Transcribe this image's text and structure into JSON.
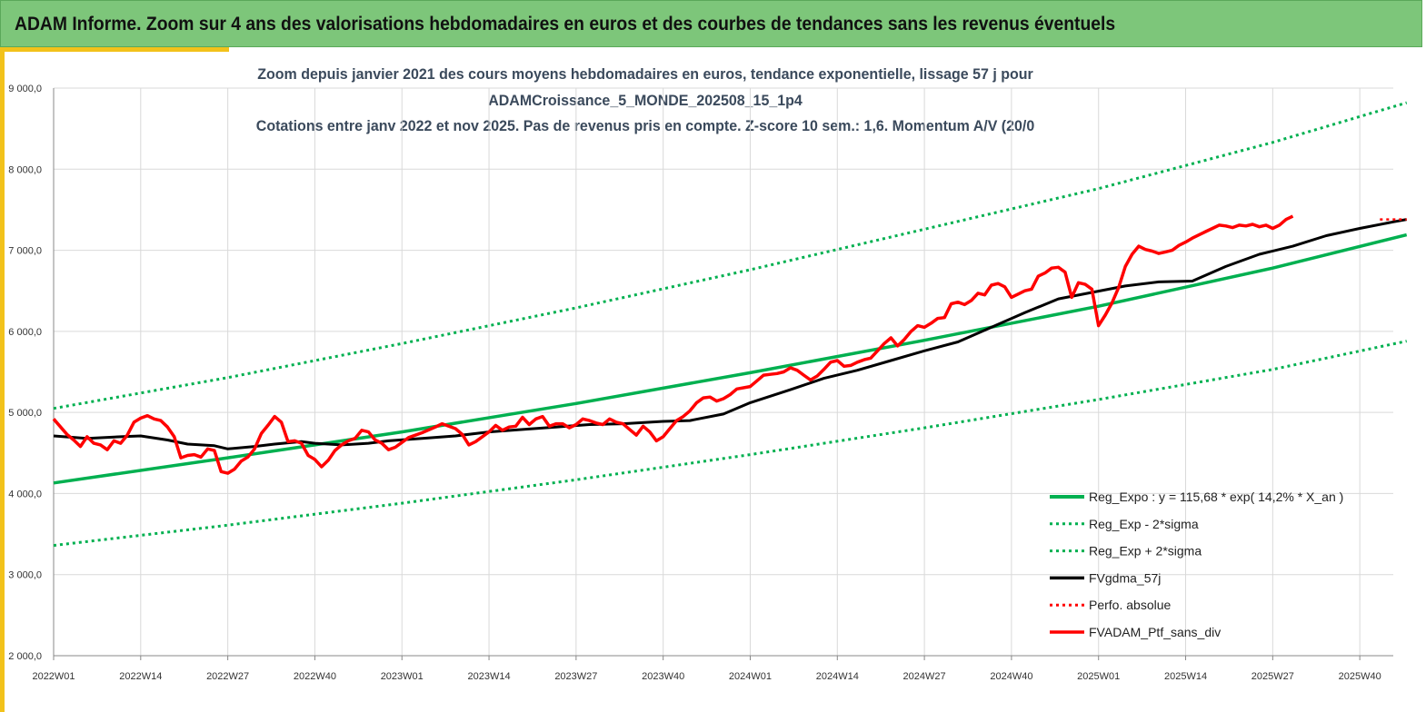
{
  "banner": {
    "title": "ADAM Informe. Zoom sur 4 ans des valorisations hebdomadaires en euros et des courbes de tendances sans les revenus éventuels"
  },
  "colors": {
    "banner": "#7dc67a",
    "accent": "#f2c21b",
    "green": "#00b050",
    "black": "#000000",
    "red": "#ff0000",
    "title": "#3b4a5c"
  },
  "chart_data": {
    "type": "line",
    "title_lines": [
      "Zoom depuis janvier 2021 des cours moyens hebdomadaires  en euros, tendance exponentielle, lissage 57 j pour",
      "ADAMCroissance_5_MONDE_202508_15_1p4",
      "Cotations  entre janv 2022 et nov 2025. Pas de revenus pris en compte. Z-score 10 sem.: 1,6. Momentum A/V (20/0"
    ],
    "x_unit": "weeks since 2022W01",
    "x_range": [
      0,
      200
    ],
    "ylim": [
      2000,
      9000
    ],
    "y_ticks": [
      "2 000,0",
      "3 000,0",
      "4 000,0",
      "5 000,0",
      "6 000,0",
      "7 000,0",
      "8 000,0",
      "9 000,0"
    ],
    "y_tick_values": [
      2000,
      3000,
      4000,
      5000,
      6000,
      7000,
      8000,
      9000
    ],
    "x_ticks": [
      "2022W01",
      "2022W14",
      "2022W27",
      "2022W40",
      "2023W01",
      "2023W14",
      "2023W27",
      "2023W40",
      "2024W01",
      "2024W14",
      "2024W27",
      "2024W40",
      "2025W01",
      "2025W14",
      "2025W27",
      "2025W40"
    ],
    "x_tick_values": [
      0,
      13,
      26,
      39,
      52,
      65,
      78,
      91,
      104,
      117,
      130,
      143,
      156,
      169,
      182,
      195
    ],
    "legend": [
      {
        "label": "Reg_Expo : y = 115,68 * exp( 14,2% *  X_an )",
        "color": "#00b050",
        "style": "solid",
        "width": 4
      },
      {
        "label": "Reg_Exp - 2*sigma",
        "color": "#00b050",
        "style": "dotted",
        "width": 3
      },
      {
        "label": "Reg_Exp + 2*sigma",
        "color": "#00b050",
        "style": "dotted",
        "width": 3
      },
      {
        "label": "FVgdma_57j",
        "color": "#000000",
        "style": "solid",
        "width": 3.5
      },
      {
        "label": "Perfo. absolue",
        "color": "#ff0000",
        "style": "dotted",
        "width": 3
      },
      {
        "label": "FVADAM_Ptf_sans_div",
        "color": "#ff0000",
        "style": "solid",
        "width": 3.5
      }
    ],
    "series": [
      {
        "name": "Reg_Expo",
        "color": "#00b050",
        "style": "solid",
        "width": 3.5,
        "points": [
          [
            0,
            4130
          ],
          [
            26,
            4440
          ],
          [
            52,
            4760
          ],
          [
            78,
            5110
          ],
          [
            104,
            5490
          ],
          [
            130,
            5890
          ],
          [
            156,
            6310
          ],
          [
            182,
            6780
          ],
          [
            202,
            7190
          ]
        ]
      },
      {
        "name": "Reg_Exp - 2*sigma",
        "color": "#00b050",
        "style": "dotted",
        "width": 3,
        "points": [
          [
            0,
            3360
          ],
          [
            26,
            3610
          ],
          [
            52,
            3880
          ],
          [
            78,
            4170
          ],
          [
            104,
            4480
          ],
          [
            130,
            4810
          ],
          [
            156,
            5160
          ],
          [
            182,
            5530
          ],
          [
            202,
            5880
          ]
        ]
      },
      {
        "name": "Reg_Exp + 2*sigma",
        "color": "#00b050",
        "style": "dotted",
        "width": 3,
        "points": [
          [
            0,
            5050
          ],
          [
            26,
            5430
          ],
          [
            52,
            5850
          ],
          [
            78,
            6290
          ],
          [
            104,
            6760
          ],
          [
            130,
            7260
          ],
          [
            156,
            7760
          ],
          [
            182,
            8330
          ],
          [
            202,
            8820
          ]
        ]
      },
      {
        "name": "FVgdma_57j",
        "color": "#000000",
        "style": "solid",
        "width": 3,
        "points": [
          [
            0,
            4710
          ],
          [
            5,
            4680
          ],
          [
            10,
            4700
          ],
          [
            13,
            4710
          ],
          [
            17,
            4660
          ],
          [
            20,
            4610
          ],
          [
            24,
            4590
          ],
          [
            26,
            4550
          ],
          [
            30,
            4580
          ],
          [
            33,
            4610
          ],
          [
            37,
            4640
          ],
          [
            39,
            4620
          ],
          [
            43,
            4600
          ],
          [
            47,
            4620
          ],
          [
            50,
            4650
          ],
          [
            55,
            4680
          ],
          [
            60,
            4710
          ],
          [
            65,
            4760
          ],
          [
            70,
            4790
          ],
          [
            75,
            4820
          ],
          [
            80,
            4850
          ],
          [
            85,
            4860
          ],
          [
            91,
            4890
          ],
          [
            95,
            4900
          ],
          [
            100,
            4980
          ],
          [
            104,
            5120
          ],
          [
            110,
            5280
          ],
          [
            115,
            5420
          ],
          [
            120,
            5520
          ],
          [
            125,
            5640
          ],
          [
            130,
            5760
          ],
          [
            135,
            5870
          ],
          [
            140,
            6050
          ],
          [
            145,
            6230
          ],
          [
            150,
            6400
          ],
          [
            155,
            6480
          ],
          [
            160,
            6560
          ],
          [
            165,
            6610
          ],
          [
            170,
            6620
          ],
          [
            175,
            6800
          ],
          [
            180,
            6950
          ],
          [
            185,
            7050
          ],
          [
            190,
            7180
          ],
          [
            195,
            7270
          ],
          [
            200,
            7350
          ],
          [
            202,
            7380
          ]
        ]
      },
      {
        "name": "Perfo. absolue",
        "color": "#ff0000",
        "style": "dotted",
        "width": 2.5,
        "points": [
          [
            198,
            7380
          ],
          [
            202,
            7380
          ]
        ]
      },
      {
        "name": "FVADAM_Ptf_sans_div",
        "color": "#ff0000",
        "style": "solid",
        "width": 3.5,
        "points": [
          [
            0,
            4920
          ],
          [
            2,
            4730
          ],
          [
            3,
            4660
          ],
          [
            4,
            4580
          ],
          [
            5,
            4700
          ],
          [
            6,
            4620
          ],
          [
            7,
            4600
          ],
          [
            8,
            4540
          ],
          [
            9,
            4650
          ],
          [
            10,
            4620
          ],
          [
            11,
            4720
          ],
          [
            12,
            4880
          ],
          [
            13,
            4930
          ],
          [
            14,
            4960
          ],
          [
            15,
            4920
          ],
          [
            16,
            4900
          ],
          [
            17,
            4820
          ],
          [
            18,
            4700
          ],
          [
            19,
            4440
          ],
          [
            20,
            4470
          ],
          [
            21,
            4480
          ],
          [
            22,
            4450
          ],
          [
            23,
            4550
          ],
          [
            24,
            4530
          ],
          [
            25,
            4270
          ],
          [
            26,
            4250
          ],
          [
            27,
            4300
          ],
          [
            28,
            4400
          ],
          [
            29,
            4450
          ],
          [
            30,
            4550
          ],
          [
            31,
            4740
          ],
          [
            32,
            4840
          ],
          [
            33,
            4950
          ],
          [
            34,
            4880
          ],
          [
            35,
            4640
          ],
          [
            36,
            4650
          ],
          [
            37,
            4620
          ],
          [
            38,
            4470
          ],
          [
            39,
            4420
          ],
          [
            40,
            4330
          ],
          [
            41,
            4410
          ],
          [
            42,
            4530
          ],
          [
            43,
            4600
          ],
          [
            44,
            4650
          ],
          [
            45,
            4680
          ],
          [
            46,
            4780
          ],
          [
            47,
            4760
          ],
          [
            48,
            4660
          ],
          [
            49,
            4620
          ],
          [
            50,
            4540
          ],
          [
            51,
            4570
          ],
          [
            52,
            4630
          ],
          [
            53,
            4690
          ],
          [
            55,
            4750
          ],
          [
            57,
            4820
          ],
          [
            58,
            4860
          ],
          [
            60,
            4800
          ],
          [
            61,
            4730
          ],
          [
            62,
            4600
          ],
          [
            63,
            4640
          ],
          [
            64,
            4700
          ],
          [
            65,
            4760
          ],
          [
            66,
            4840
          ],
          [
            67,
            4780
          ],
          [
            68,
            4820
          ],
          [
            69,
            4830
          ],
          [
            70,
            4940
          ],
          [
            71,
            4850
          ],
          [
            72,
            4920
          ],
          [
            73,
            4950
          ],
          [
            74,
            4830
          ],
          [
            75,
            4860
          ],
          [
            76,
            4860
          ],
          [
            77,
            4810
          ],
          [
            78,
            4850
          ],
          [
            79,
            4920
          ],
          [
            80,
            4900
          ],
          [
            81,
            4870
          ],
          [
            82,
            4850
          ],
          [
            83,
            4920
          ],
          [
            84,
            4880
          ],
          [
            85,
            4860
          ],
          [
            86,
            4790
          ],
          [
            87,
            4720
          ],
          [
            88,
            4830
          ],
          [
            89,
            4760
          ],
          [
            90,
            4650
          ],
          [
            91,
            4700
          ],
          [
            92,
            4800
          ],
          [
            93,
            4900
          ],
          [
            94,
            4950
          ],
          [
            95,
            5020
          ],
          [
            96,
            5120
          ],
          [
            97,
            5180
          ],
          [
            98,
            5190
          ],
          [
            99,
            5140
          ],
          [
            100,
            5170
          ],
          [
            101,
            5220
          ],
          [
            102,
            5290
          ],
          [
            104,
            5320
          ],
          [
            105,
            5390
          ],
          [
            106,
            5460
          ],
          [
            107,
            5470
          ],
          [
            108,
            5480
          ],
          [
            109,
            5500
          ],
          [
            110,
            5550
          ],
          [
            111,
            5520
          ],
          [
            112,
            5460
          ],
          [
            113,
            5400
          ],
          [
            114,
            5450
          ],
          [
            115,
            5530
          ],
          [
            116,
            5620
          ],
          [
            117,
            5640
          ],
          [
            118,
            5570
          ],
          [
            119,
            5580
          ],
          [
            120,
            5620
          ],
          [
            121,
            5650
          ],
          [
            122,
            5670
          ],
          [
            123,
            5760
          ],
          [
            124,
            5850
          ],
          [
            125,
            5920
          ],
          [
            126,
            5820
          ],
          [
            127,
            5900
          ],
          [
            128,
            6000
          ],
          [
            129,
            6070
          ],
          [
            130,
            6050
          ],
          [
            131,
            6100
          ],
          [
            132,
            6160
          ],
          [
            133,
            6170
          ],
          [
            134,
            6340
          ],
          [
            135,
            6360
          ],
          [
            136,
            6330
          ],
          [
            137,
            6380
          ],
          [
            138,
            6470
          ],
          [
            139,
            6450
          ],
          [
            140,
            6570
          ],
          [
            141,
            6590
          ],
          [
            142,
            6550
          ],
          [
            143,
            6420
          ],
          [
            144,
            6460
          ],
          [
            145,
            6500
          ],
          [
            146,
            6520
          ],
          [
            147,
            6680
          ],
          [
            148,
            6720
          ],
          [
            149,
            6780
          ],
          [
            150,
            6790
          ],
          [
            151,
            6730
          ],
          [
            152,
            6420
          ],
          [
            153,
            6600
          ],
          [
            154,
            6580
          ],
          [
            155,
            6520
          ],
          [
            156,
            6070
          ],
          [
            157,
            6200
          ],
          [
            158,
            6350
          ],
          [
            159,
            6540
          ],
          [
            160,
            6800
          ],
          [
            161,
            6950
          ],
          [
            162,
            7050
          ],
          [
            163,
            7010
          ],
          [
            164,
            6990
          ],
          [
            165,
            6960
          ],
          [
            166,
            6980
          ],
          [
            167,
            7000
          ],
          [
            168,
            7060
          ],
          [
            169,
            7100
          ],
          [
            170,
            7150
          ],
          [
            171,
            7190
          ],
          [
            172,
            7230
          ],
          [
            173,
            7270
          ],
          [
            174,
            7310
          ],
          [
            175,
            7300
          ],
          [
            176,
            7280
          ],
          [
            177,
            7310
          ],
          [
            178,
            7300
          ],
          [
            179,
            7320
          ],
          [
            180,
            7290
          ],
          [
            181,
            7310
          ],
          [
            182,
            7270
          ],
          [
            183,
            7310
          ],
          [
            184,
            7380
          ],
          [
            185,
            7420
          ]
        ]
      }
    ]
  }
}
